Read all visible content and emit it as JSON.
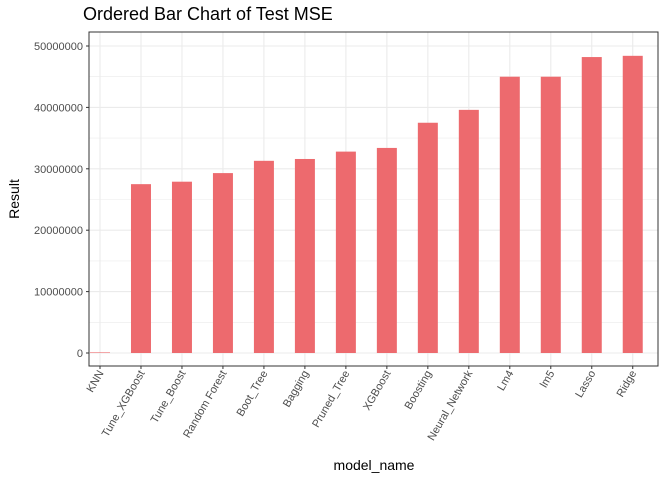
{
  "chart_data": {
    "type": "bar",
    "title": "Ordered Bar Chart of Test MSE",
    "xlabel": "model_name",
    "ylabel": "Result",
    "categories": [
      "KNN",
      "Tune_XGBoost",
      "Tune_Boost",
      "Random Forest",
      "Boot_Tree",
      "Bagging",
      "Pruned_Tree",
      "XGBoost",
      "Boosting",
      "Neural_Network",
      "Lm4",
      "lm5",
      "Lasso",
      "Ridge"
    ],
    "values": [
      0,
      27500000,
      27900000,
      29300000,
      31300000,
      31600000,
      32800000,
      33400000,
      37500000,
      39600000,
      45000000,
      45000000,
      48200000,
      48400000
    ],
    "ylim": [
      0,
      50000000
    ],
    "yticks": [
      0,
      10000000,
      20000000,
      30000000,
      40000000,
      50000000
    ],
    "ytick_labels": [
      "0",
      "10000000",
      "20000000",
      "30000000",
      "40000000",
      "50000000"
    ],
    "grid": true,
    "bar_color": "#ED6A6E",
    "panel_border_color": "#333333",
    "grid_color": "#EBEBEB"
  }
}
